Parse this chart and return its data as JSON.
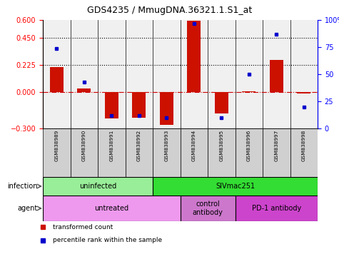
{
  "title": "GDS4235 / MmugDNA.36321.1.S1_at",
  "samples": [
    "GSM838989",
    "GSM838990",
    "GSM838991",
    "GSM838992",
    "GSM838993",
    "GSM838994",
    "GSM838995",
    "GSM838996",
    "GSM838997",
    "GSM838998"
  ],
  "transformed_counts": [
    0.21,
    0.03,
    -0.22,
    -0.21,
    -0.27,
    0.595,
    -0.175,
    0.01,
    0.27,
    -0.01
  ],
  "percentile_ranks": [
    74,
    43,
    12,
    12,
    10,
    97,
    10,
    50,
    87,
    20
  ],
  "ylim_left": [
    -0.3,
    0.6
  ],
  "ylim_right": [
    0,
    100
  ],
  "yticks_left": [
    -0.3,
    0,
    0.225,
    0.45,
    0.6
  ],
  "yticks_right": [
    0,
    25,
    50,
    75,
    100
  ],
  "hlines": [
    0.225,
    0.45
  ],
  "hline_zero_color": "#cc0000",
  "bar_color": "#cc1100",
  "dot_color": "#0000cc",
  "infection_groups": [
    {
      "label": "uninfected",
      "start": 0,
      "end": 4,
      "color": "#99ee99"
    },
    {
      "label": "SIVmac251",
      "start": 4,
      "end": 10,
      "color": "#33dd33"
    }
  ],
  "agent_groups": [
    {
      "label": "untreated",
      "start": 0,
      "end": 5,
      "color": "#ee99ee"
    },
    {
      "label": "control\nantibody",
      "start": 5,
      "end": 7,
      "color": "#cc77cc"
    },
    {
      "label": "PD-1 antibody",
      "start": 7,
      "end": 10,
      "color": "#cc44cc"
    }
  ],
  "infection_label": "infection",
  "agent_label": "agent",
  "legend_items": [
    {
      "color": "#cc1100",
      "label": "transformed count"
    },
    {
      "color": "#0000cc",
      "label": "percentile rank within the sample"
    }
  ],
  "bg_color": "#ffffff",
  "cell_bg": "#d0d0d0"
}
